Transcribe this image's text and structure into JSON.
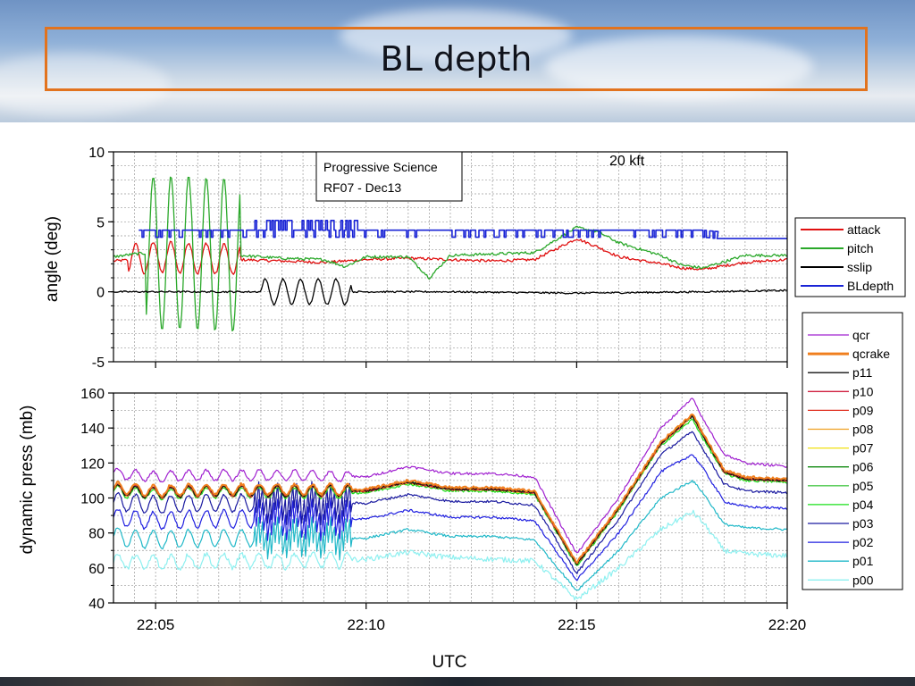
{
  "slide": {
    "title": "BL depth"
  },
  "chart_data": [
    {
      "type": "line",
      "ylabel": "angle (deg)",
      "ylim": [
        -5,
        10
      ],
      "yticks": [
        -5,
        0,
        5,
        10
      ],
      "xlim": [
        "22:04",
        "22:20"
      ],
      "grid": true,
      "legend_position": "right",
      "annotations": [
        "20 kft"
      ],
      "info_box": [
        "Progressive Science",
        "RF07 - Dec13"
      ],
      "series": [
        {
          "name": "attack",
          "color": "#e01010",
          "x": [
            "22:04",
            "22:04:30",
            "22:05",
            "22:07",
            "22:08",
            "22:09",
            "22:10",
            "22:11",
            "22:12",
            "22:13",
            "22:14",
            "22:15",
            "22:15:30",
            "22:16",
            "22:17",
            "22:17:30",
            "22:18",
            "22:19",
            "22:20"
          ],
          "y": [
            2.2,
            2.3,
            2.5,
            2.3,
            2.2,
            2.1,
            2.3,
            2.4,
            2.3,
            2.2,
            2.3,
            3.8,
            3.2,
            2.5,
            2.0,
            1.7,
            1.6,
            2.1,
            2.3
          ]
        },
        {
          "name": "pitch",
          "color": "#2aa82a",
          "x": [
            "22:04",
            "22:04:30",
            "22:05",
            "22:07",
            "22:08",
            "22:09",
            "22:09:30",
            "22:10",
            "22:11",
            "22:11:30",
            "22:12",
            "22:13",
            "22:14",
            "22:15",
            "22:15:30",
            "22:16",
            "22:17",
            "22:17:30",
            "22:18",
            "22:19",
            "22:20"
          ],
          "y": [
            2.5,
            2.7,
            2.8,
            2.6,
            2.4,
            2.3,
            1.8,
            2.5,
            2.5,
            1.0,
            2.6,
            2.7,
            2.8,
            4.6,
            4.3,
            3.5,
            2.6,
            1.9,
            1.7,
            2.6,
            2.6
          ]
        },
        {
          "name": "sslip",
          "color": "#000000",
          "x": [
            "22:04",
            "22:07",
            "22:07:30",
            "22:10",
            "22:12",
            "22:15",
            "22:18",
            "22:20"
          ],
          "y": [
            0,
            0,
            0,
            0,
            0,
            -0.1,
            0,
            0.1
          ]
        },
        {
          "name": "BLdepth",
          "color": "#1a24d6",
          "x": [
            "22:04",
            "22:10",
            "22:14",
            "22:15",
            "22:18",
            "22:20"
          ],
          "y": [
            4.4,
            4.4,
            4.4,
            4.4,
            4.4,
            3.8
          ]
        }
      ]
    },
    {
      "type": "line",
      "ylabel": "dynamic press (mb)",
      "xlabel": "UTC",
      "ylim": [
        40,
        160
      ],
      "yticks": [
        40,
        60,
        80,
        100,
        120,
        140,
        160
      ],
      "xlim": [
        "22:04",
        "22:20"
      ],
      "xticks": [
        "22:05",
        "22:10",
        "22:15",
        "22:20"
      ],
      "grid": true,
      "legend_position": "right",
      "x": [
        "22:04",
        "22:05",
        "22:06",
        "22:08",
        "22:10",
        "22:11",
        "22:12",
        "22:13",
        "22:14",
        "22:15",
        "22:16",
        "22:17",
        "22:17:45",
        "22:18",
        "22:18:30",
        "22:19",
        "22:20"
      ],
      "series": [
        {
          "name": "qcr",
          "color": "#a020d0",
          "values": [
            114,
            112,
            113,
            113,
            112,
            118,
            114,
            114,
            112,
            68,
            100,
            140,
            157,
            145,
            125,
            120,
            118
          ]
        },
        {
          "name": "qcrake",
          "color": "#f07f1e",
          "values": [
            106,
            104,
            105,
            105,
            105,
            110,
            106,
            106,
            104,
            63,
            95,
            132,
            148,
            137,
            116,
            112,
            111
          ]
        },
        {
          "name": "p11",
          "color": "#111111",
          "values": [
            105,
            103,
            104,
            104,
            104,
            109,
            105,
            105,
            103,
            62,
            94,
            131,
            147,
            136,
            115,
            111,
            110
          ]
        },
        {
          "name": "p10",
          "color": "#d02040",
          "values": [
            105,
            103,
            104,
            104,
            104,
            109,
            105,
            105,
            103,
            62,
            94,
            131,
            147,
            136,
            115,
            111,
            110
          ]
        },
        {
          "name": "p09",
          "color": "#e03020",
          "values": [
            105,
            103,
            104,
            104,
            104,
            109,
            105,
            105,
            103,
            62,
            94,
            131,
            147,
            136,
            115,
            111,
            110
          ]
        },
        {
          "name": "p08",
          "color": "#f0a020",
          "values": [
            105,
            103,
            104,
            104,
            104,
            109,
            105,
            105,
            103,
            62,
            94,
            131,
            147,
            136,
            115,
            111,
            110
          ]
        },
        {
          "name": "p07",
          "color": "#f0e010",
          "values": [
            105,
            103,
            104,
            104,
            104,
            109,
            105,
            105,
            103,
            62,
            94,
            131,
            147,
            136,
            115,
            111,
            110
          ]
        },
        {
          "name": "p06",
          "color": "#118a11",
          "values": [
            105,
            103,
            104,
            104,
            104,
            109,
            105,
            105,
            103,
            62,
            94,
            131,
            147,
            136,
            115,
            111,
            110
          ]
        },
        {
          "name": "p05",
          "color": "#4cc84c",
          "values": [
            105,
            103,
            104,
            104,
            104,
            109,
            105,
            105,
            103,
            62,
            94,
            131,
            147,
            136,
            115,
            111,
            110
          ]
        },
        {
          "name": "p04",
          "color": "#18e018",
          "values": [
            104,
            102,
            103,
            103,
            103,
            108,
            104,
            104,
            102,
            61,
            93,
            130,
            145,
            134,
            114,
            110,
            109
          ]
        },
        {
          "name": "p03",
          "color": "#1a1aa0",
          "values": [
            98,
            96,
            97,
            97,
            97,
            102,
            98,
            98,
            96,
            57,
            88,
            125,
            138,
            128,
            108,
            104,
            103
          ]
        },
        {
          "name": "p02",
          "color": "#2020e0",
          "values": [
            89,
            87,
            88,
            88,
            88,
            93,
            89,
            89,
            87,
            53,
            80,
            115,
            125,
            117,
            98,
            95,
            94
          ]
        },
        {
          "name": "p01",
          "color": "#20b8c8",
          "values": [
            78,
            76,
            77,
            77,
            77,
            82,
            78,
            78,
            76,
            47,
            70,
            100,
            110,
            103,
            85,
            83,
            82
          ]
        },
        {
          "name": "p00",
          "color": "#8ef0f0",
          "values": [
            64,
            63,
            64,
            64,
            65,
            69,
            66,
            65,
            64,
            42,
            60,
            82,
            92,
            86,
            70,
            68,
            67
          ]
        }
      ]
    }
  ]
}
